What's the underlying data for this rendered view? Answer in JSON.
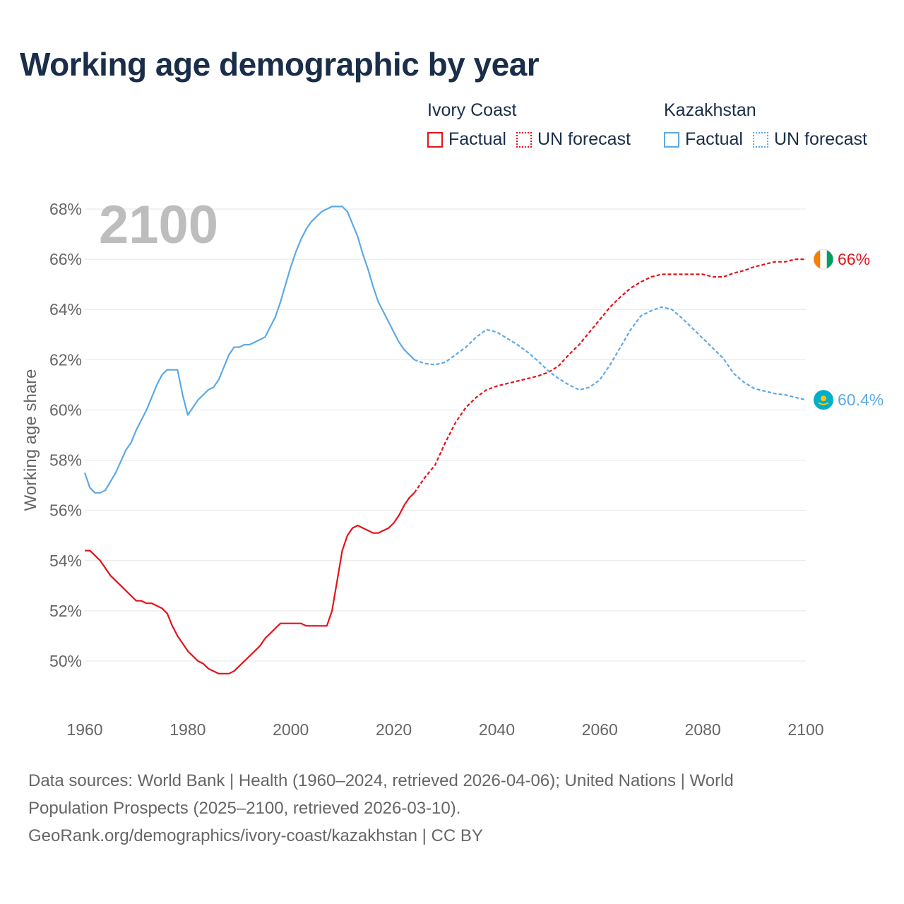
{
  "title": "Working age demographic by year",
  "legend": {
    "groups": [
      {
        "name": "Ivory Coast",
        "factual_label": "Factual",
        "forecast_label": "UN forecast",
        "color": "#e3131b"
      },
      {
        "name": "Kazakhstan",
        "factual_label": "Factual",
        "forecast_label": "UN forecast",
        "color": "#5ca9e6"
      }
    ]
  },
  "footer": {
    "line1": "Data sources: World Bank | Health (1960–2024, retrieved 2026-04-06); United Nations | World",
    "line2": "Population Prospects (2025–2100, retrieved 2026-03-10).",
    "line3": "GeoRank.org/demographics/ivory-coast/kazakhstan | CC BY"
  },
  "chart_data": {
    "type": "line",
    "title": "Working age demographic by year",
    "xlabel": "",
    "ylabel": "Working age share",
    "year_label": "2100",
    "xlim": [
      1960,
      2100
    ],
    "ylim": [
      48,
      69
    ],
    "x_ticks": [
      1960,
      1980,
      2000,
      2020,
      2040,
      2060,
      2080,
      2100
    ],
    "y_ticks": [
      {
        "value": 50,
        "label": "50%"
      },
      {
        "value": 52,
        "label": "52%"
      },
      {
        "value": 54,
        "label": "54%"
      },
      {
        "value": 56,
        "label": "56%"
      },
      {
        "value": 58,
        "label": "58%"
      },
      {
        "value": 60,
        "label": "60%"
      },
      {
        "value": 62,
        "label": "62%"
      },
      {
        "value": 64,
        "label": "64%"
      },
      {
        "value": 66,
        "label": "66%"
      },
      {
        "value": 68,
        "label": "68%"
      }
    ],
    "grid": true,
    "series": [
      {
        "name": "Ivory Coast",
        "color": "#e3131b",
        "end_label": "66%",
        "flag_colors": [
          "#f77f00",
          "#ffffff",
          "#009e60"
        ],
        "factual_x": [
          1960,
          1961,
          1963,
          1965,
          1967,
          1969,
          1970,
          1971,
          1972,
          1973,
          1975,
          1976,
          1977,
          1978,
          1980,
          1982,
          1983,
          1984,
          1986,
          1987,
          1988,
          1989,
          1990,
          1992,
          1994,
          1995,
          1997,
          1998,
          1999,
          2000,
          2001,
          2002,
          2003,
          2004,
          2005,
          2006,
          2007,
          2008,
          2009,
          2010,
          2011,
          2012,
          2013,
          2014,
          2015,
          2016,
          2017,
          2018,
          2019,
          2020,
          2021,
          2022,
          2023,
          2024
        ],
        "factual_y": [
          54.4,
          54.4,
          54.0,
          53.4,
          53.0,
          52.6,
          52.4,
          52.4,
          52.3,
          52.3,
          52.1,
          51.9,
          51.4,
          51.0,
          50.4,
          50.0,
          49.9,
          49.7,
          49.5,
          49.5,
          49.5,
          49.6,
          49.8,
          50.2,
          50.6,
          50.9,
          51.3,
          51.5,
          51.5,
          51.5,
          51.5,
          51.5,
          51.4,
          51.4,
          51.4,
          51.4,
          51.4,
          52.0,
          53.2,
          54.4,
          55.0,
          55.3,
          55.4,
          55.3,
          55.2,
          55.1,
          55.1,
          55.2,
          55.3,
          55.5,
          55.8,
          56.2,
          56.5,
          56.7
        ],
        "forecast_x": [
          2024,
          2026,
          2028,
          2030,
          2032,
          2034,
          2036,
          2038,
          2040,
          2042,
          2044,
          2046,
          2048,
          2050,
          2052,
          2054,
          2056,
          2058,
          2060,
          2062,
          2064,
          2066,
          2068,
          2070,
          2072,
          2075,
          2080,
          2082,
          2084,
          2086,
          2088,
          2090,
          2092,
          2094,
          2096,
          2098,
          2100
        ],
        "forecast_y": [
          56.7,
          57.3,
          57.8,
          58.7,
          59.5,
          60.1,
          60.5,
          60.8,
          60.95,
          61.05,
          61.15,
          61.25,
          61.35,
          61.5,
          61.75,
          62.2,
          62.6,
          63.1,
          63.6,
          64.1,
          64.5,
          64.85,
          65.1,
          65.3,
          65.4,
          65.4,
          65.4,
          65.3,
          65.3,
          65.45,
          65.55,
          65.7,
          65.8,
          65.9,
          65.9,
          66.0,
          66.0
        ]
      },
      {
        "name": "Kazakhstan",
        "color": "#5ca9e6",
        "end_label": "60.4%",
        "flag_colors": [
          "#00afca",
          "#fec50c"
        ],
        "factual_x": [
          1960,
          1961,
          1962,
          1963,
          1964,
          1966,
          1968,
          1969,
          1970,
          1972,
          1974,
          1975,
          1976,
          1977,
          1978,
          1979,
          1980,
          1982,
          1984,
          1985,
          1986,
          1987,
          1988,
          1989,
          1990,
          1991,
          1992,
          1994,
          1995,
          1996,
          1997,
          1998,
          1999,
          2000,
          2001,
          2002,
          2003,
          2004,
          2006,
          2008,
          2009,
          2010,
          2011,
          2012,
          2013,
          2014,
          2015,
          2016,
          2017,
          2018,
          2020,
          2021,
          2022,
          2023,
          2024
        ],
        "factual_y": [
          57.5,
          56.9,
          56.7,
          56.7,
          56.8,
          57.5,
          58.4,
          58.7,
          59.2,
          60.0,
          61.0,
          61.4,
          61.6,
          61.6,
          61.6,
          60.6,
          59.8,
          60.4,
          60.8,
          60.9,
          61.2,
          61.7,
          62.2,
          62.5,
          62.5,
          62.6,
          62.6,
          62.8,
          62.9,
          63.3,
          63.7,
          64.3,
          65.0,
          65.7,
          66.3,
          66.8,
          67.2,
          67.5,
          67.9,
          68.1,
          68.1,
          68.1,
          67.9,
          67.4,
          66.9,
          66.2,
          65.6,
          64.9,
          64.3,
          63.9,
          63.1,
          62.7,
          62.4,
          62.2,
          62.0
        ],
        "forecast_x": [
          2024,
          2026,
          2028,
          2030,
          2032,
          2034,
          2036,
          2038,
          2040,
          2042,
          2044,
          2046,
          2048,
          2050,
          2052,
          2054,
          2056,
          2058,
          2060,
          2062,
          2064,
          2066,
          2068,
          2070,
          2072,
          2074,
          2076,
          2078,
          2080,
          2082,
          2084,
          2086,
          2088,
          2090,
          2092,
          2094,
          2096,
          2098,
          2100
        ],
        "forecast_y": [
          62.0,
          61.85,
          61.8,
          61.9,
          62.2,
          62.5,
          62.9,
          63.2,
          63.1,
          62.85,
          62.6,
          62.3,
          61.95,
          61.55,
          61.25,
          61.0,
          60.8,
          60.9,
          61.2,
          61.8,
          62.5,
          63.2,
          63.75,
          63.95,
          64.1,
          64.0,
          63.65,
          63.25,
          62.85,
          62.45,
          62.05,
          61.45,
          61.1,
          60.85,
          60.75,
          60.65,
          60.6,
          60.5,
          60.4
        ]
      }
    ]
  }
}
